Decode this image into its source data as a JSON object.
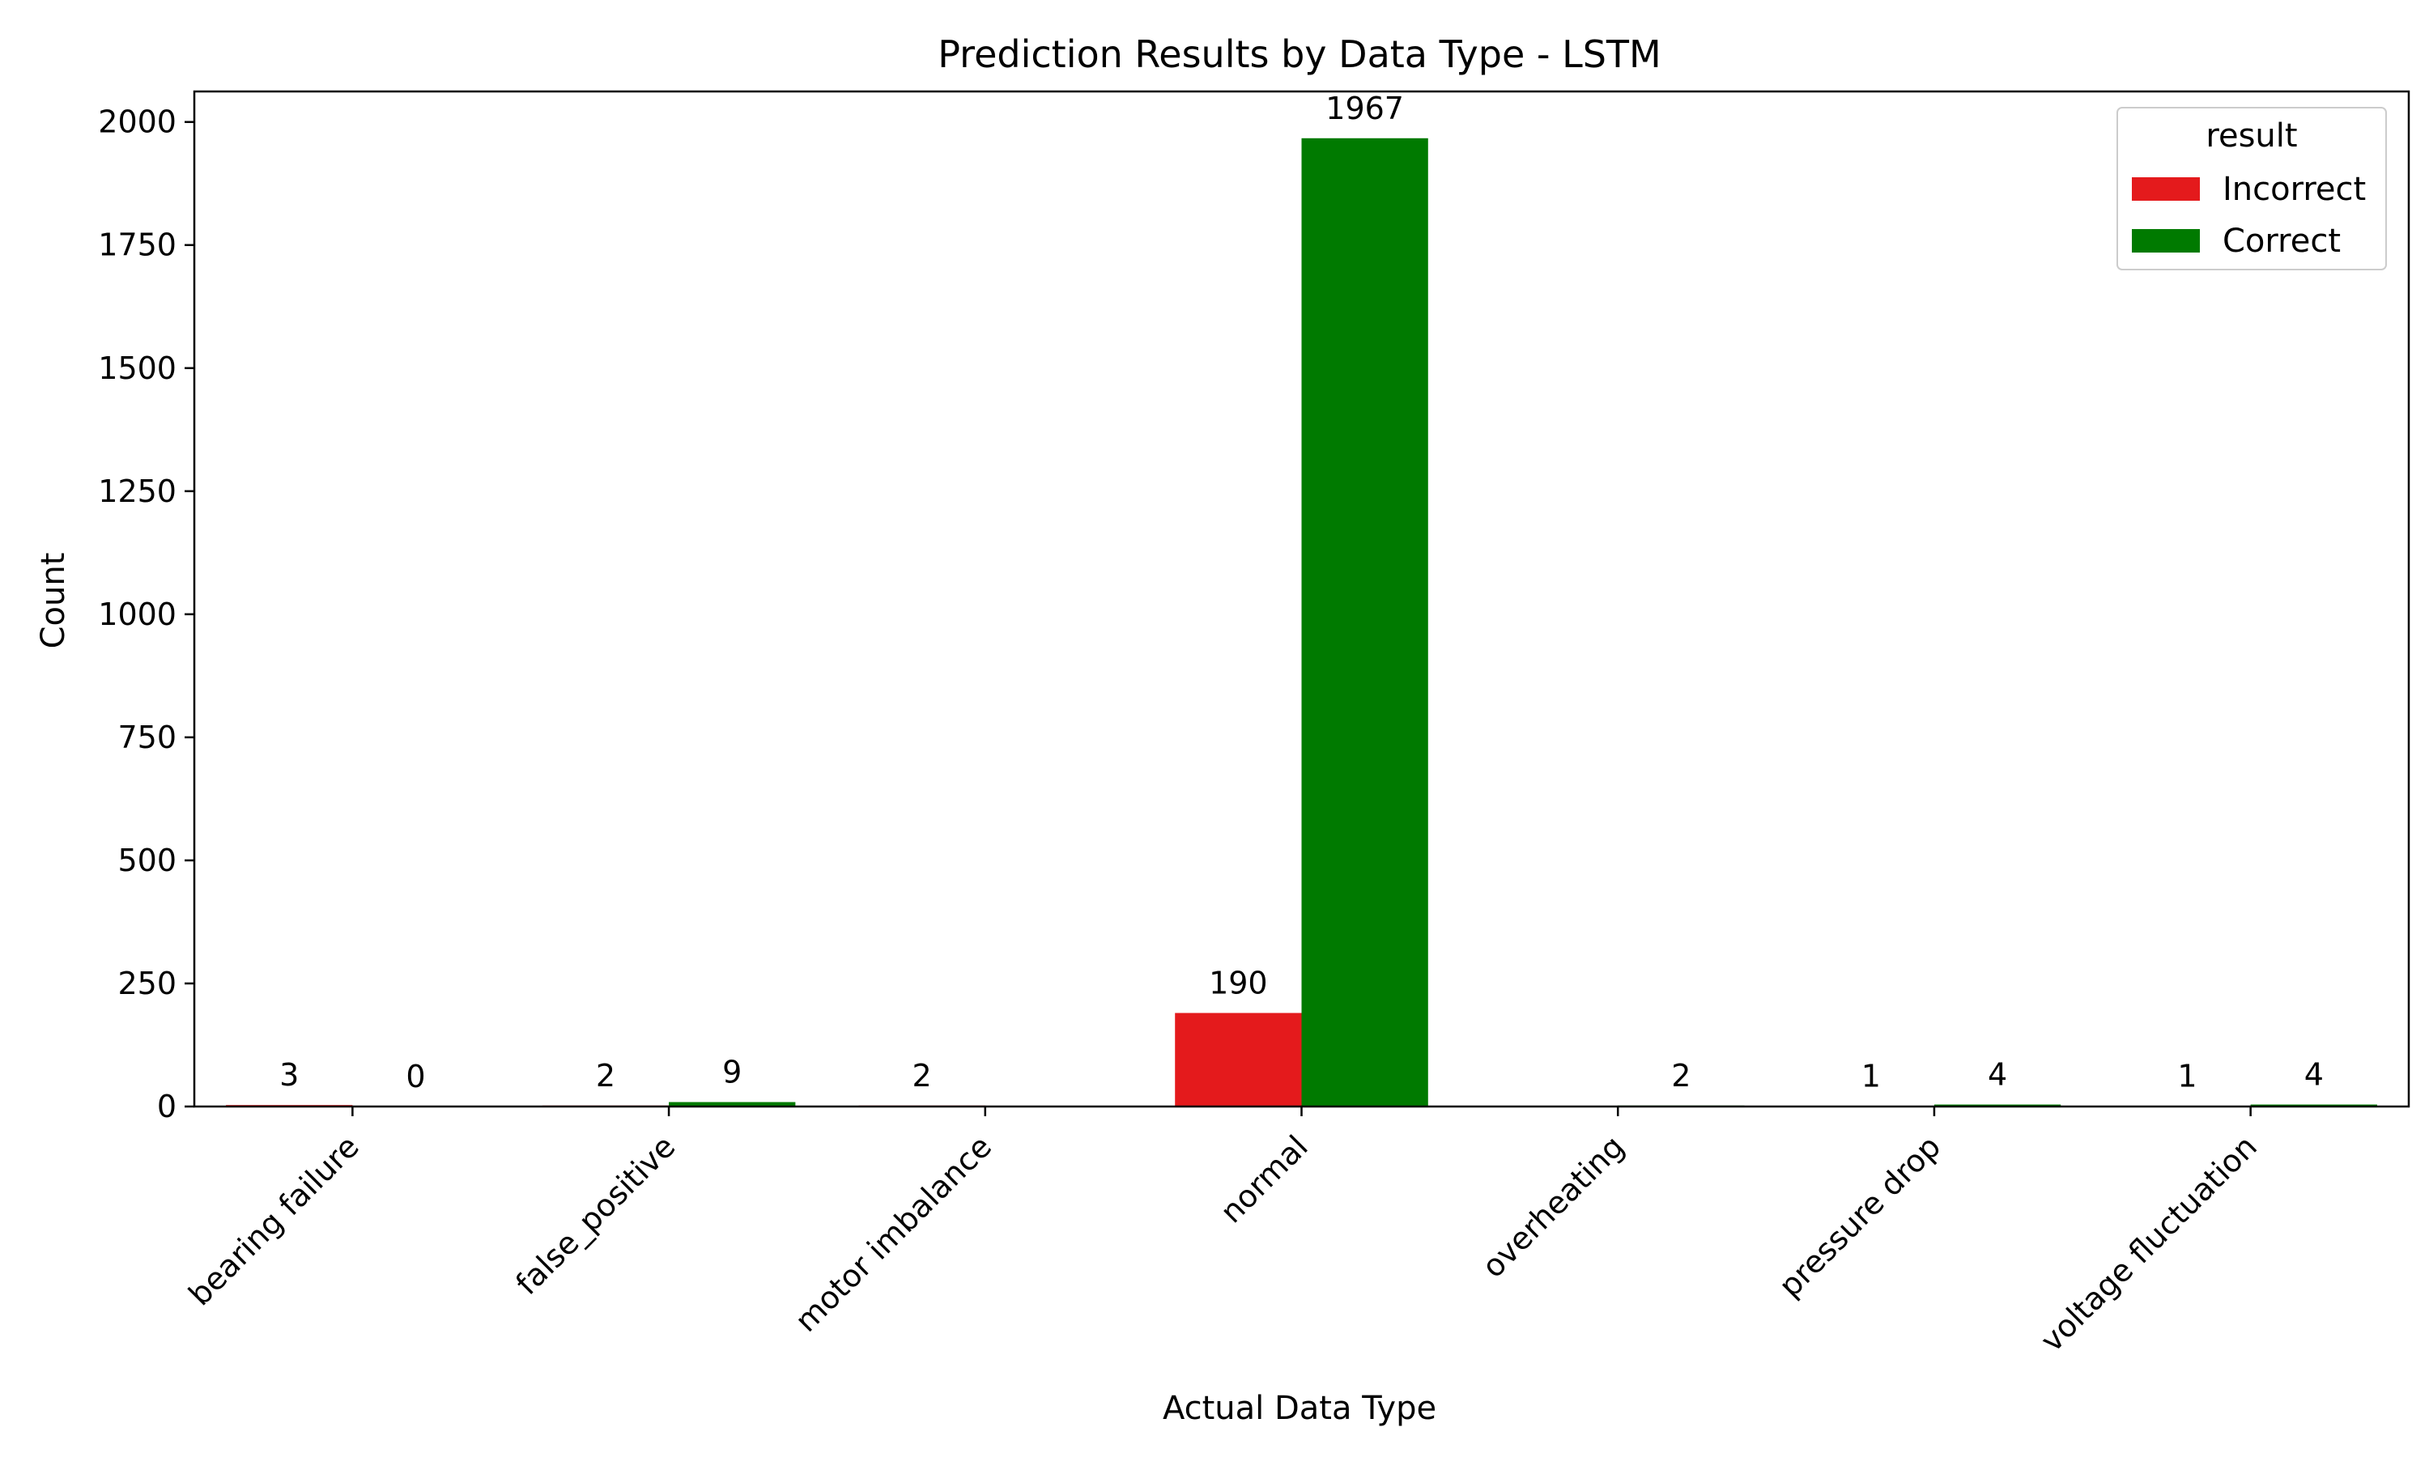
{
  "chart_data": {
    "type": "bar",
    "title": "Prediction Results by Data Type - LSTM",
    "xlabel": "Actual Data Type",
    "ylabel": "Count",
    "ylim": [
      0,
      2062
    ],
    "yticks": [
      0,
      250,
      500,
      750,
      1000,
      1250,
      1500,
      1750,
      2000
    ],
    "categories": [
      "bearing failure",
      "false_positive",
      "motor imbalance",
      "normal",
      "overheating",
      "pressure drop",
      "voltage fluctuation"
    ],
    "series": [
      {
        "name": "Incorrect",
        "color": "#e41a1c",
        "values": [
          3,
          2,
          2,
          190,
          0,
          1,
          1
        ],
        "labels": [
          "3",
          "2",
          "2",
          "190",
          "",
          "1",
          "1"
        ]
      },
      {
        "name": "Correct",
        "color": "#007a00",
        "values": [
          0,
          9,
          0,
          1967,
          2,
          4,
          4
        ],
        "labels": [
          "0",
          "9",
          "",
          "1967",
          "2",
          "4",
          "4"
        ]
      }
    ],
    "legend": {
      "title": "result",
      "position": "top-right"
    },
    "grid": false
  }
}
